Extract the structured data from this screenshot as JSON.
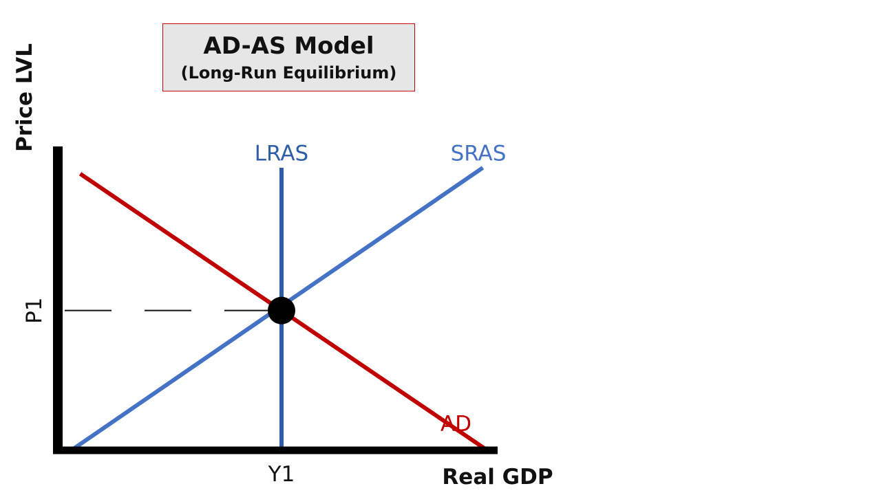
{
  "chart_data": {
    "type": "line",
    "title": "AD-AS Model",
    "subtitle": "(Long-Run Equilibrium)",
    "xlabel": "Real GDP",
    "ylabel": "Price LVL",
    "xlim": [
      0,
      100
    ],
    "ylim": [
      0,
      100
    ],
    "x_ticks": [
      {
        "label": "Y1",
        "value": 50
      }
    ],
    "y_ticks": [
      {
        "label": "P1",
        "value": 46
      }
    ],
    "series": [
      {
        "name": "AD",
        "color": "#c00000",
        "points": [
          [
            5,
            91
          ],
          [
            96,
            0
          ]
        ]
      },
      {
        "name": "SRAS",
        "color": "#4472c4",
        "points": [
          [
            3,
            0
          ],
          [
            95,
            93
          ]
        ]
      },
      {
        "name": "LRAS",
        "color": "#2f5ea6",
        "points": [
          [
            50,
            93
          ],
          [
            50,
            0
          ]
        ]
      }
    ],
    "series_labels": [
      {
        "series": "LRAS",
        "text": "LRAS",
        "x": 50,
        "y": 99
      },
      {
        "series": "SRAS",
        "text": "SRAS",
        "x": 94,
        "y": 99
      },
      {
        "series": "AD",
        "text": "AD",
        "x": 89,
        "y": 10
      }
    ],
    "equilibrium": {
      "x": 50,
      "y": 46,
      "color": "#000000"
    },
    "guide_line": {
      "style": "dashed",
      "from_x": 0,
      "to_x": 50,
      "y": 46
    },
    "grid": false,
    "legend": "none"
  }
}
